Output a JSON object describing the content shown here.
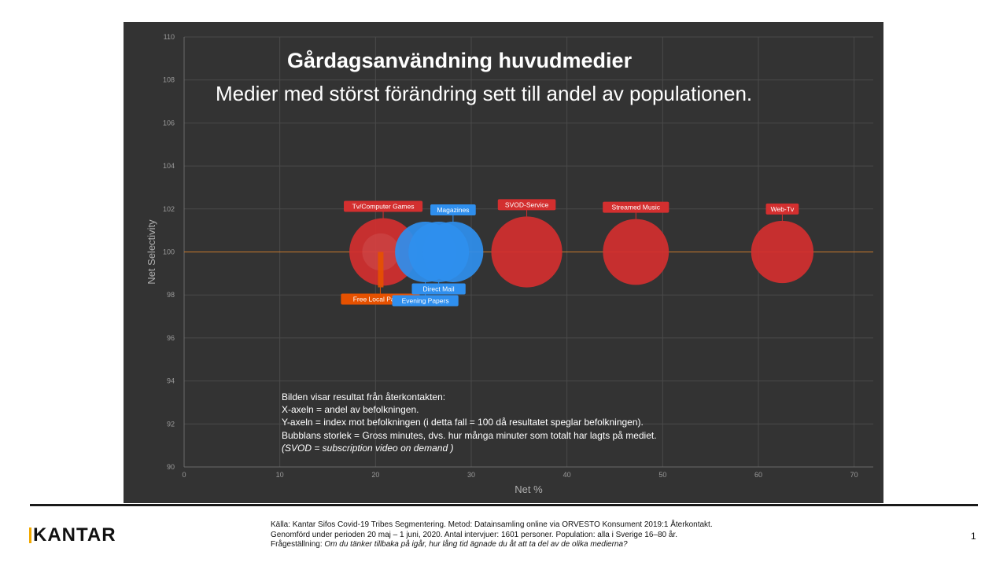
{
  "chart_data": {
    "type": "bubble",
    "title": "Gårdagsanvändning huvudmedier",
    "subtitle": "Medier med störst förändring sett till andel av populationen.",
    "xlabel": "Net %",
    "ylabel": "Net Selectivity",
    "xlim": [
      0,
      72
    ],
    "ylim": [
      90,
      110
    ],
    "x_ticks": [
      "0",
      "10",
      "20",
      "30",
      "40",
      "50",
      "60",
      "70"
    ],
    "y_ticks": [
      "90",
      "92",
      "94",
      "96",
      "98",
      "100",
      "102",
      "104",
      "106",
      "108",
      "110"
    ],
    "grid": true,
    "reference_line": 100,
    "points": [
      {
        "label": "Tv/Computer Games",
        "x": 20.8,
        "y": 100,
        "size": 1.0,
        "color": "#d32f2f",
        "label_pos": "above"
      },
      {
        "label": "Free Local Papers",
        "x": 20.5,
        "y": 100,
        "size": 0.15,
        "color": "#e65100",
        "label_pos": "below"
      },
      {
        "label": "Evening Papers",
        "x": 25.2,
        "y": 100,
        "size": 0.8,
        "color": "#2f8fee",
        "label_pos": "below"
      },
      {
        "label": "Direct Mail",
        "x": 26.6,
        "y": 100,
        "size": 0.8,
        "color": "#2f8fee",
        "label_pos": "below"
      },
      {
        "label": "Magazines",
        "x": 28.1,
        "y": 100,
        "size": 0.8,
        "color": "#2f8fee",
        "label_pos": "above"
      },
      {
        "label": "SVOD-Service",
        "x": 35.8,
        "y": 100,
        "size": 1.1,
        "color": "#d32f2f",
        "label_pos": "above"
      },
      {
        "label": "Streamed Music",
        "x": 47.2,
        "y": 100,
        "size": 0.95,
        "color": "#d32f2f",
        "label_pos": "above"
      },
      {
        "label": "Web-Tv",
        "x": 62.5,
        "y": 100,
        "size": 0.85,
        "color": "#d32f2f",
        "label_pos": "above"
      }
    ]
  },
  "note": {
    "line1": "Bilden visar resultat från återkontakten:",
    "line2": "X-axeln = andel av befolkningen.",
    "line3": "Y-axeln = index mot befolkningen (i detta fall = 100 då resultatet speglar befolkningen).",
    "line4": "Bubblans storlek = Gross minutes, dvs. hur många minuter som totalt har lagts på mediet.",
    "line5": "(SVOD = subscription video on demand )"
  },
  "footer": {
    "logo": "KANTAR",
    "source_line1": "Källa: Kantar Sifos Covid-19 Tribes Segmentering. Metod: Datainsamling online via ORVESTO Konsument 2019:1 Återkontakt.",
    "source_line2": "Genomförd under perioden 20 maj – 1 juni, 2020. Antal intervjuer: 1601 personer. Population: alla i Sverige 16–80 år.",
    "source_label3": "Frågeställning: ",
    "source_question": "Om du tänker tillbaka på igår, hur lång tid ägnade du åt att ta del av de olika medierna?",
    "page_number": "1"
  },
  "colors": {
    "panel_bg": "#333333",
    "grid": "#4a4a4a",
    "reference_line": "#c8782c",
    "red_bubble": "#d32f2f",
    "blue_bubble": "#2f8fee",
    "logo_accent": "#f2a900"
  }
}
